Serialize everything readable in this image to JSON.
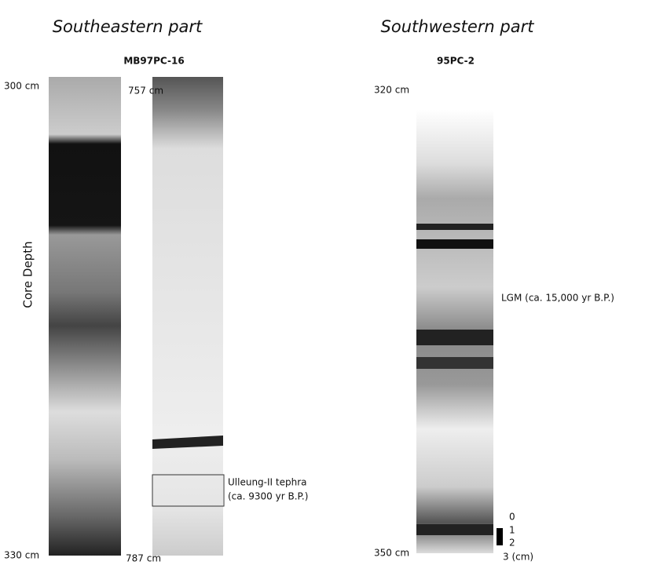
{
  "titles": {
    "southeast": "Southeastern part",
    "southwest": "Southwestern part"
  },
  "cores": [
    {
      "name": "MB97PC-16",
      "sections": [
        {
          "top": "300 cm",
          "bottom": "330 cm"
        },
        {
          "top": "757 cm",
          "bottom": "787 cm"
        }
      ]
    },
    {
      "name": "95PC-2",
      "sections": [
        {
          "top": "320 cm",
          "bottom": "350 cm"
        }
      ]
    }
  ],
  "axis_label": "Core Depth",
  "annotations": {
    "tephra": [
      "Ulleung-II tephra",
      "(ca. 9300 yr B.P.)"
    ],
    "lgm": "LGM (ca. 15,000 yr B.P.)"
  },
  "scale": [
    "0",
    "1",
    "2",
    "3 (cm)"
  ]
}
